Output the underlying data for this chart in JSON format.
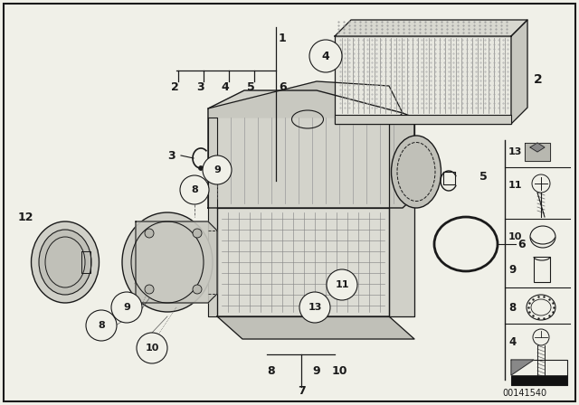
{
  "bg_color": "#f0f0e8",
  "line_color": "#1a1a1a",
  "fig_width": 6.4,
  "fig_height": 4.48,
  "diagram_id": "00141540"
}
